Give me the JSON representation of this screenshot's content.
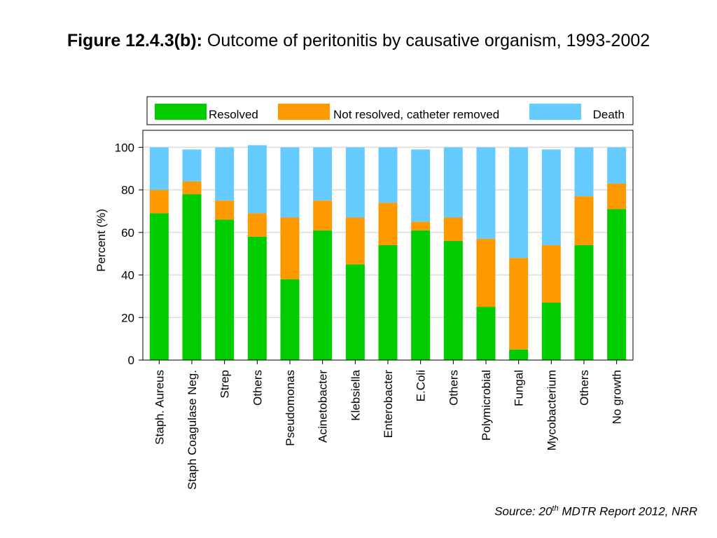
{
  "figure": {
    "label": "Figure 12.4.3(b):",
    "title": "Outcome of peritonitis by causative organism, 1993-2002"
  },
  "source": {
    "prefix": "Source: 20",
    "sup": "th",
    "suffix": " MDTR Report 2012, NRR"
  },
  "chart_data": {
    "type": "bar",
    "stacked": true,
    "categories": [
      "Staph. Aureus",
      "Staph Coagulase Neg.",
      "Strep",
      "Others",
      "Pseudomonas",
      "Acinetobacter",
      "Klebsiella",
      "Enterobacter",
      "E.Coli",
      "Others",
      "Polymicrobial",
      "Fungal",
      "Mycobacterium",
      "Others",
      "No growth"
    ],
    "series": [
      {
        "name": "Resolved",
        "color": "#00cc00",
        "values": [
          69,
          78,
          66,
          58,
          38,
          61,
          45,
          54,
          61,
          56,
          25,
          5,
          27,
          54,
          71
        ]
      },
      {
        "name": "Not resolved, catheter removed",
        "color": "#ff9900",
        "values": [
          11,
          6,
          9,
          11,
          29,
          14,
          22,
          20,
          4,
          11,
          32,
          43,
          27,
          23,
          12
        ]
      },
      {
        "name": "Death",
        "color": "#66ccff",
        "values": [
          20,
          15,
          25,
          32,
          33,
          25,
          33,
          26,
          34,
          33,
          43,
          52,
          45,
          23,
          17
        ]
      }
    ],
    "ylabel": "Percent (%)",
    "xlabel": "",
    "ylim": [
      0,
      108
    ],
    "yticks": [
      0,
      20,
      40,
      60,
      80,
      100
    ],
    "grid": true,
    "legend": "top"
  }
}
